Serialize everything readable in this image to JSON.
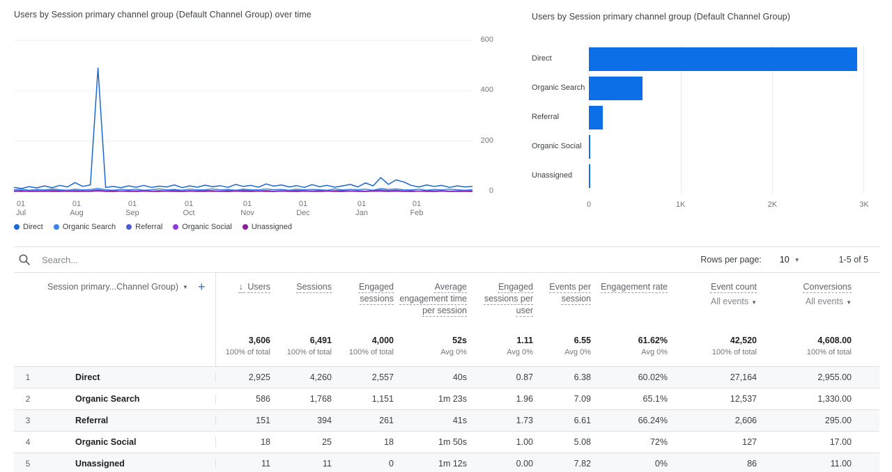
{
  "chart_data": [
    {
      "type": "line",
      "title": "Users by Session primary channel group (Default Channel Group) over time",
      "ylim": [
        0,
        600
      ],
      "y_ticks": [
        600,
        400,
        200,
        0
      ],
      "x_ticks": [
        {
          "line1": "01",
          "line2": "Jul"
        },
        {
          "line1": "01",
          "line2": "Aug"
        },
        {
          "line1": "01",
          "line2": "Sep"
        },
        {
          "line1": "01",
          "line2": "Oct"
        },
        {
          "line1": "01",
          "line2": "Nov"
        },
        {
          "line1": "01",
          "line2": "Dec"
        },
        {
          "line1": "01",
          "line2": "Jan"
        },
        {
          "line1": "01",
          "line2": "Feb"
        }
      ],
      "legend_position": "bottom",
      "grid": true,
      "series": [
        {
          "name": "Direct",
          "color": "#1967d2",
          "values": [
            16,
            12,
            19,
            14,
            22,
            15,
            24,
            18,
            35,
            20,
            26,
            490,
            16,
            20,
            15,
            22,
            17,
            24,
            16,
            21,
            18,
            26,
            15,
            22,
            17,
            25,
            19,
            23,
            16,
            28,
            20,
            24,
            17,
            30,
            21,
            26,
            18,
            23,
            16,
            27,
            19,
            24,
            17,
            22,
            28,
            18,
            34,
            22,
            55,
            28,
            46,
            38,
            24,
            18,
            26,
            20,
            24,
            16,
            22,
            18,
            20
          ]
        },
        {
          "name": "Organic Search",
          "color": "#3b82f0",
          "values": [
            6,
            9,
            5,
            8,
            6,
            10,
            7,
            5,
            9,
            6,
            8,
            12,
            7,
            5,
            8,
            6,
            9,
            5,
            7,
            10,
            6,
            8,
            5,
            9,
            6,
            7,
            10,
            6,
            8,
            5,
            9,
            7,
            6,
            10,
            7,
            8,
            5,
            9,
            6,
            8,
            7,
            5,
            10,
            6,
            8,
            7,
            9,
            5,
            12,
            8,
            10,
            7,
            6,
            9,
            5,
            8,
            6,
            9,
            7,
            5,
            7
          ]
        },
        {
          "name": "Referral",
          "color": "#4d5cd6",
          "values": [
            2,
            4,
            1,
            3,
            2,
            5,
            3,
            1,
            4,
            2,
            3,
            6,
            2,
            4,
            1,
            3,
            2,
            4,
            1,
            3,
            2,
            5,
            1,
            3,
            2,
            4,
            3,
            1,
            4,
            2,
            5,
            3,
            2,
            4,
            1,
            3,
            2,
            4,
            3,
            1,
            5,
            2,
            3,
            4,
            2,
            3,
            1,
            4,
            6,
            3,
            5,
            2,
            3,
            1,
            4,
            2,
            3,
            1,
            2,
            3,
            2
          ]
        },
        {
          "name": "Organic Social",
          "color": "#9039d9",
          "values": [
            1,
            0,
            2,
            1,
            0,
            1,
            2,
            0,
            1,
            1,
            0,
            3,
            1,
            0,
            1,
            2,
            0,
            1,
            1,
            0,
            2,
            1,
            0,
            1,
            1,
            2,
            0,
            1,
            0,
            1,
            2,
            0,
            1,
            1,
            0,
            2,
            1,
            0,
            1,
            2,
            0,
            1,
            1,
            0,
            2,
            1,
            0,
            1,
            3,
            1,
            2,
            1,
            0,
            1,
            1,
            0,
            1,
            0,
            1,
            1,
            0
          ]
        },
        {
          "name": "Unassigned",
          "color": "#871f9e",
          "values": [
            0,
            1,
            0,
            0,
            1,
            0,
            0,
            1,
            0,
            0,
            1,
            2,
            0,
            0,
            1,
            0,
            0,
            1,
            0,
            0,
            1,
            0,
            0,
            1,
            0,
            0,
            1,
            0,
            0,
            1,
            0,
            0,
            1,
            0,
            0,
            1,
            0,
            0,
            1,
            0,
            0,
            1,
            0,
            0,
            1,
            0,
            0,
            1,
            1,
            0,
            1,
            0,
            0,
            1,
            0,
            0,
            1,
            0,
            0,
            0,
            0
          ]
        }
      ]
    },
    {
      "type": "bar",
      "orientation": "horizontal",
      "title": "Users by Session primary channel group (Default Channel Group)",
      "categories": [
        "Direct",
        "Organic Search",
        "Referral",
        "Organic Social",
        "Unassigned"
      ],
      "values": [
        2925,
        586,
        151,
        18,
        11
      ],
      "x_ticks": [
        "0",
        "1K",
        "2K",
        "3K"
      ],
      "xlim": [
        0,
        3000
      ],
      "bar_color": "#0d6fe8",
      "grid": true
    }
  ],
  "toolbar": {
    "search_placeholder": "Search...",
    "rows_per_page_label": "Rows per page:",
    "rows_per_page_value": "10",
    "range_label": "1-5 of 5"
  },
  "table": {
    "dimension_header": "Session primary...Channel Group)",
    "columns": [
      {
        "key": "users",
        "label": "Users",
        "sorted": true
      },
      {
        "key": "sessions",
        "label": "Sessions"
      },
      {
        "key": "engaged_sessions",
        "label": "Engaged sessions"
      },
      {
        "key": "avg_engagement_time",
        "label": "Average engagement time per session"
      },
      {
        "key": "engaged_sessions_per_user",
        "label": "Engaged sessions per user"
      },
      {
        "key": "events_per_session",
        "label": "Events per session"
      },
      {
        "key": "engagement_rate",
        "label": "Engagement rate"
      },
      {
        "key": "event_count",
        "label": "Event count",
        "sub": "All events"
      },
      {
        "key": "conversions",
        "label": "Conversions",
        "sub": "All events"
      }
    ],
    "totals": {
      "values": [
        "3,606",
        "6,491",
        "4,000",
        "52s",
        "1.11",
        "6.55",
        "61.62%",
        "42,520",
        "4,608.00"
      ],
      "subs": [
        "100% of total",
        "100% of total",
        "100% of total",
        "Avg 0%",
        "Avg 0%",
        "Avg 0%",
        "Avg 0%",
        "100% of total",
        "100% of total"
      ]
    },
    "rows": [
      {
        "num": "1",
        "channel": "Direct",
        "values": [
          "2,925",
          "4,260",
          "2,557",
          "40s",
          "0.87",
          "6.38",
          "60.02%",
          "27,164",
          "2,955.00"
        ]
      },
      {
        "num": "2",
        "channel": "Organic Search",
        "values": [
          "586",
          "1,768",
          "1,151",
          "1m 23s",
          "1.96",
          "7.09",
          "65.1%",
          "12,537",
          "1,330.00"
        ]
      },
      {
        "num": "3",
        "channel": "Referral",
        "values": [
          "151",
          "394",
          "261",
          "41s",
          "1.73",
          "6.61",
          "66.24%",
          "2,606",
          "295.00"
        ]
      },
      {
        "num": "4",
        "channel": "Organic Social",
        "values": [
          "18",
          "25",
          "18",
          "1m 50s",
          "1.00",
          "5.08",
          "72%",
          "127",
          "17.00"
        ]
      },
      {
        "num": "5",
        "channel": "Unassigned",
        "values": [
          "11",
          "11",
          "0",
          "1m 12s",
          "0.00",
          "7.82",
          "0%",
          "86",
          "11.00"
        ]
      }
    ]
  }
}
